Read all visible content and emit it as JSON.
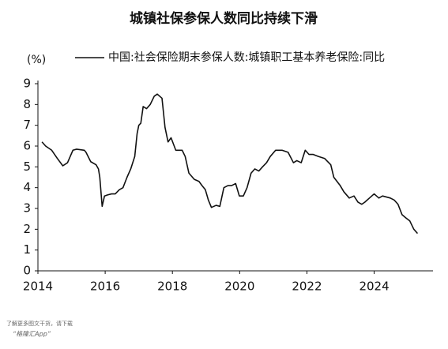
{
  "chart_data": {
    "type": "line",
    "title": "城镇社保参保人数同比持续下滑",
    "y_label": "(%)",
    "series": [
      {
        "name": "中国:社会保险期末参保人数:城镇职工基本养老保险:同比",
        "color": "#111111",
        "x": [
          2014.12,
          2014.23,
          2014.41,
          2014.58,
          2014.74,
          2014.88,
          2015.04,
          2015.15,
          2015.38,
          2015.43,
          2015.57,
          2015.73,
          2015.8,
          2015.84,
          2015.91,
          2015.98,
          2016.07,
          2016.19,
          2016.3,
          2016.42,
          2016.53,
          2016.65,
          2016.76,
          2016.88,
          2016.95,
          2017.0,
          2017.06,
          2017.13,
          2017.23,
          2017.34,
          2017.46,
          2017.55,
          2017.69,
          2017.78,
          2017.87,
          2017.96,
          2018.1,
          2018.29,
          2018.38,
          2018.49,
          2018.65,
          2018.79,
          2018.88,
          2018.98,
          2019.07,
          2019.16,
          2019.3,
          2019.41,
          2019.53,
          2019.65,
          2019.76,
          2019.88,
          2019.99,
          2020.11,
          2020.22,
          2020.34,
          2020.45,
          2020.57,
          2020.68,
          2020.8,
          2020.91,
          2021.07,
          2021.26,
          2021.44,
          2021.6,
          2021.7,
          2021.83,
          2021.95,
          2022.06,
          2022.18,
          2022.34,
          2022.53,
          2022.71,
          2022.8,
          2022.99,
          2023.1,
          2023.26,
          2023.4,
          2023.52,
          2023.63,
          2023.72,
          2023.86,
          2024.0,
          2024.14,
          2024.25,
          2024.48,
          2024.6,
          2024.71,
          2024.83,
          2024.94,
          2025.06,
          2025.18,
          2025.29
        ],
        "values": [
          6.2,
          6.0,
          5.8,
          5.4,
          5.05,
          5.2,
          5.8,
          5.85,
          5.8,
          5.7,
          5.25,
          5.1,
          4.9,
          4.5,
          3.1,
          3.6,
          3.65,
          3.7,
          3.7,
          3.9,
          4.0,
          4.5,
          4.9,
          5.5,
          6.6,
          7.0,
          7.1,
          7.9,
          7.8,
          8.0,
          8.4,
          8.5,
          8.3,
          6.9,
          6.2,
          6.4,
          5.8,
          5.8,
          5.5,
          4.7,
          4.4,
          4.3,
          4.1,
          3.9,
          3.4,
          3.05,
          3.15,
          3.1,
          4.0,
          4.1,
          4.1,
          4.2,
          3.6,
          3.6,
          4.0,
          4.7,
          4.9,
          4.8,
          5.0,
          5.2,
          5.5,
          5.8,
          5.8,
          5.7,
          5.2,
          5.3,
          5.2,
          5.8,
          5.6,
          5.6,
          5.5,
          5.4,
          5.1,
          4.5,
          4.1,
          3.8,
          3.5,
          3.6,
          3.3,
          3.2,
          3.3,
          3.5,
          3.7,
          3.5,
          3.6,
          3.5,
          3.4,
          3.2,
          2.7,
          2.55,
          2.4,
          2.0,
          1.8
        ]
      }
    ],
    "xlim": [
      2014,
      2025.75
    ],
    "xticks": [
      2014,
      2016,
      2018,
      2020,
      2022,
      2024
    ],
    "ylim": [
      0,
      9
    ],
    "yticks": [
      0,
      1,
      2,
      3,
      4,
      5,
      6,
      7,
      8,
      9
    ],
    "grid": false,
    "annotations": [
      "了解更多图文干货，请下载",
      "“格隆汇App”"
    ]
  }
}
